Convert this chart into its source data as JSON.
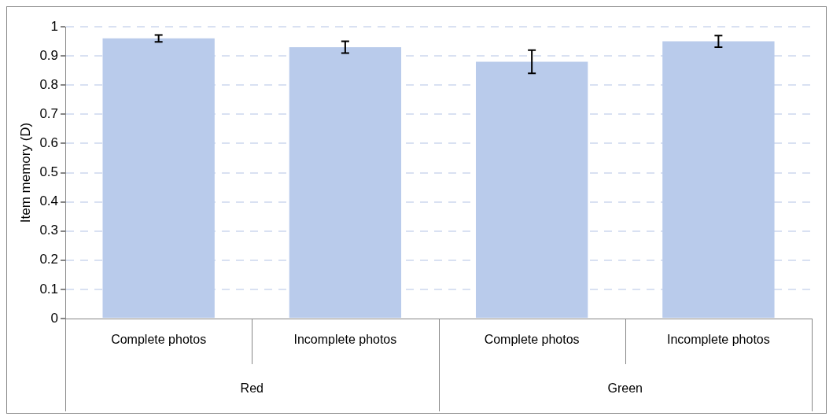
{
  "chart_data": {
    "type": "bar",
    "ylabel": "Item memory (D)",
    "categories": [
      "Complete photos",
      "Incomplete photos",
      "Complete photos",
      "Incomplete photos"
    ],
    "annotations": [
      "Red",
      "Green"
    ],
    "values": [
      0.96,
      0.93,
      0.88,
      0.95
    ],
    "errors": [
      0.012,
      0.02,
      0.04,
      0.02
    ],
    "color": "#b9cbeb",
    "ylim": [
      0,
      1
    ],
    "yticks": [
      0,
      0.1,
      0.2,
      0.3,
      0.4,
      0.5,
      0.6,
      0.7,
      0.8,
      0.9,
      1
    ],
    "grid": "y"
  }
}
